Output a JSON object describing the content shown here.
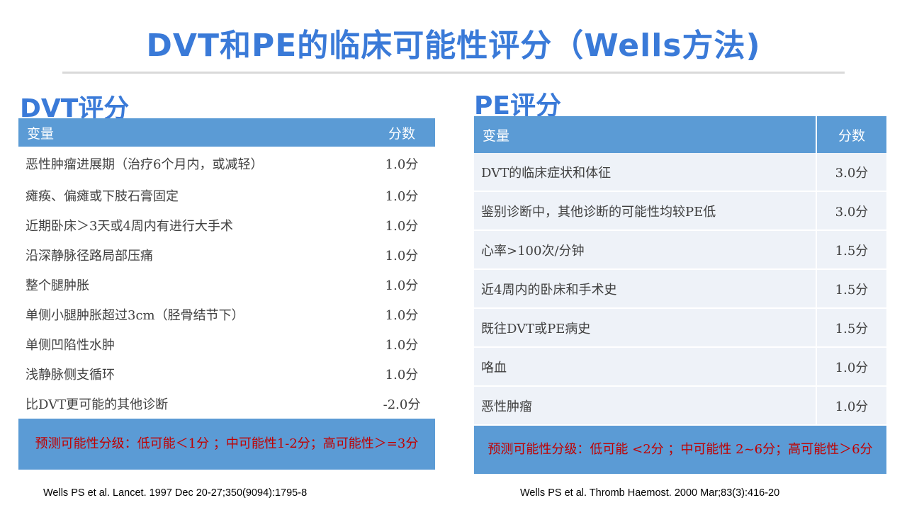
{
  "title": "DVT和PE的临床可能性评分（Wells方法)",
  "dvt": {
    "heading": "DVT评分",
    "col_variable": "变量",
    "col_score": "分数",
    "rows": [
      {
        "label": "恶性肿瘤进展期（治疗6个月内，或减轻）",
        "score": "1.0分"
      },
      {
        "label": "瘫痪、偏瘫或下肢石膏固定",
        "score": "1.0分"
      },
      {
        "label": "近期卧床＞3天或4周内有进行大手术",
        "score": "1.0分"
      },
      {
        "label": "沿深静脉径路局部压痛",
        "score": "1.0分"
      },
      {
        "label": "整个腿肿胀",
        "score": "1.0分"
      },
      {
        "label": "单侧小腿肿胀超过3cm（胫骨结节下）",
        "score": "1.0分"
      },
      {
        "label": "单侧凹陷性水肿",
        "score": "1.0分"
      },
      {
        "label": "浅静脉侧支循环",
        "score": "1.0分"
      },
      {
        "label": "比DVT更可能的其他诊断",
        "score": "-2.0分"
      }
    ],
    "footer": "预测可能性分级：低可能＜1分 ；中可能性1-2分；高可能性＞=3分",
    "reference": "Wells PS et al. Lancet. 1997 Dec 20-27;350(9094):1795-8"
  },
  "pe": {
    "heading": "PE评分",
    "col_variable": "变量",
    "col_score": "分数",
    "rows": [
      {
        "label": "DVT的临床症状和体征",
        "score": "3.0分"
      },
      {
        "label": "鉴别诊断中，其他诊断的可能性均较PE低",
        "score": "3.0分"
      },
      {
        "label": "心率>100次/分钟",
        "score": "1.5分"
      },
      {
        "label": "近4周内的卧床和手术史",
        "score": "1.5分"
      },
      {
        "label": "既往DVT或PE病史",
        "score": "1.5分"
      },
      {
        "label": "咯血",
        "score": "1.0分"
      },
      {
        "label": "恶性肿瘤",
        "score": "1.0分"
      }
    ],
    "footer": "预测可能性分级：低可能 <2分 ；中可能性 2~6分；高可能性＞6分",
    "reference": "Wells PS et al. Thromb Haemost. 2000 Mar;83(3):416-20"
  },
  "colors": {
    "accent": "#3a7ad8",
    "header_fill": "#5b9bd5",
    "footer_text": "#c00000",
    "pe_row_fill": "#eef2f8"
  }
}
